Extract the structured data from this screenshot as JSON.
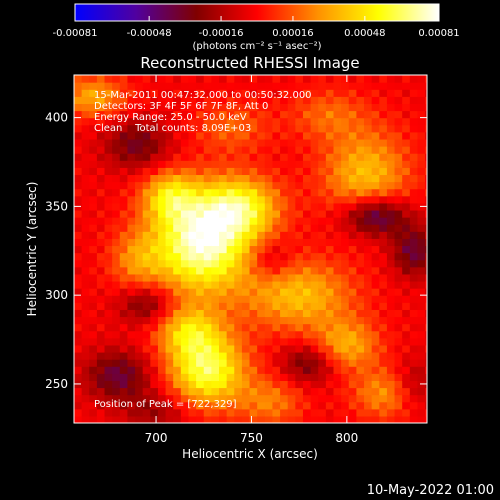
{
  "chart_data": {
    "type": "heatmap",
    "title": "Reconstructed RHESSI Image",
    "xlabel": "Heliocentric X (arcsec)",
    "ylabel": "Heliocentric Y (arcsec)",
    "xlim": [
      657,
      842
    ],
    "ylim": [
      228,
      424
    ],
    "xticks": [
      700,
      750,
      800
    ],
    "yticks": [
      250,
      300,
      350,
      400
    ],
    "colorbar": {
      "min": -0.00081,
      "max": 0.00081,
      "ticks": [
        "-0.00081",
        "-0.00048",
        "-0.00016",
        "0.00016",
        "0.00048",
        "0.00081"
      ],
      "units": "(photons cm⁻² s⁻¹ asec⁻²)",
      "stops": [
        "#0000ff",
        "#5000a0",
        "#800000",
        "#ff0000",
        "#ff9000",
        "#ffff00",
        "#ffffff"
      ]
    },
    "annotations": [
      "15-Mar-2011 00:47:32.000 to 00:50:32.000",
      "Detectors: 3F 4F 5F 6F 7F 8F, Att 0",
      "Energy Range: 25.0 - 50.0 keV",
      "Clean    Total counts: 8.09E+03"
    ],
    "peak_label": "Position of Peak = [722,329]",
    "peak": [
      722,
      329
    ],
    "sources": [
      {
        "x": 724,
        "y": 330,
        "amp": 0.00081,
        "sx": 18,
        "sy": 20
      },
      {
        "x": 745,
        "y": 350,
        "amp": 0.0005,
        "sx": 14,
        "sy": 12
      },
      {
        "x": 707,
        "y": 356,
        "amp": 0.0004,
        "sx": 10,
        "sy": 10
      },
      {
        "x": 775,
        "y": 300,
        "amp": 0.0004,
        "sx": 20,
        "sy": 14
      },
      {
        "x": 810,
        "y": 368,
        "amp": 0.0004,
        "sx": 16,
        "sy": 18
      },
      {
        "x": 727,
        "y": 258,
        "amp": 0.00065,
        "sx": 14,
        "sy": 14
      },
      {
        "x": 717,
        "y": 280,
        "amp": 0.0004,
        "sx": 12,
        "sy": 10
      },
      {
        "x": 667,
        "y": 412,
        "amp": 0.00035,
        "sx": 12,
        "sy": 8
      },
      {
        "x": 820,
        "y": 245,
        "amp": 0.0003,
        "sx": 12,
        "sy": 10
      },
      {
        "x": 790,
        "y": 402,
        "amp": 0.0002,
        "sx": 14,
        "sy": 10
      },
      {
        "x": 800,
        "y": 272,
        "amp": 0.00035,
        "sx": 12,
        "sy": 10
      },
      {
        "x": 760,
        "y": 240,
        "amp": 0.00025,
        "sx": 12,
        "sy": 10
      },
      {
        "x": 690,
        "y": 320,
        "amp": 0.00025,
        "sx": 10,
        "sy": 12
      },
      {
        "x": 740,
        "y": 395,
        "amp": 0.0002,
        "sx": 14,
        "sy": 10
      },
      {
        "x": 815,
        "y": 345,
        "amp": -0.0005,
        "sx": 12,
        "sy": 8
      },
      {
        "x": 835,
        "y": 325,
        "amp": -0.00035,
        "sx": 8,
        "sy": 10
      },
      {
        "x": 690,
        "y": 385,
        "amp": -0.0003,
        "sx": 12,
        "sy": 10
      },
      {
        "x": 680,
        "y": 255,
        "amp": -0.00035,
        "sx": 12,
        "sy": 10
      },
      {
        "x": 695,
        "y": 295,
        "amp": -0.0003,
        "sx": 10,
        "sy": 8
      },
      {
        "x": 780,
        "y": 262,
        "amp": -0.0003,
        "sx": 10,
        "sy": 8
      },
      {
        "x": 760,
        "y": 320,
        "amp": -0.0002,
        "sx": 8,
        "sy": 8
      },
      {
        "x": 835,
        "y": 250,
        "amp": -0.0002,
        "sx": 8,
        "sy": 10
      },
      {
        "x": 700,
        "y": 235,
        "amp": -0.0002,
        "sx": 12,
        "sy": 8
      }
    ]
  },
  "footer_timestamp": "10-May-2022 01:00"
}
